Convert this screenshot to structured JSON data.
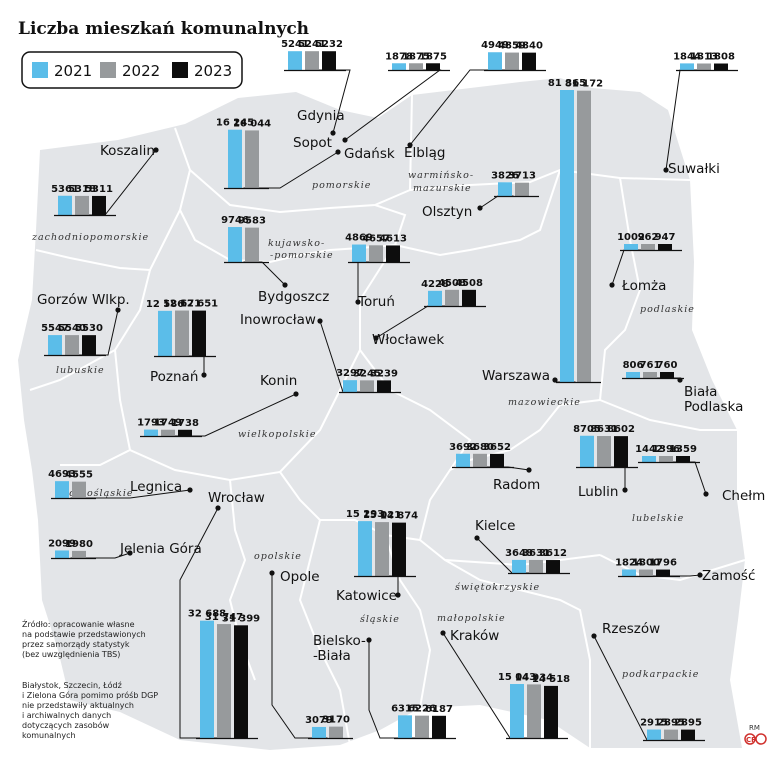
{
  "title": "Liczba mieszkań komunalnych",
  "legend": [
    {
      "label": "2021",
      "color": "#5bbde9"
    },
    {
      "label": "2022",
      "color": "#979a9c"
    },
    {
      "label": "2023",
      "color": "#0d0d0d"
    }
  ],
  "regions": [
    "pomorskie",
    "warmińsko-",
    "mazurskie",
    "zachodniopomorskie",
    "kujawsko-",
    "-pomorskie",
    "podlaskie",
    "lubuskie",
    "wielkopolskie",
    "mazowieckie",
    "dolnośląskie",
    "lubelskie",
    "opolskie",
    "świętokrzyskie",
    "śląskie",
    "małopolskie",
    "podkarpackie"
  ],
  "source_lines": [
    "Źródło: opracowanie własne",
    "na podstawie przedstawionych",
    "przez samorządy statystyk",
    "(bez uwzględnienia TBS)"
  ],
  "note_lines": [
    "Białystok, Szczecin, Łódź",
    "i Zielona Góra pomimo próśb DGP",
    "nie przedstawiły aktualnych",
    "i archiwalnych danych",
    "dotyczących zasobów",
    "komunalnych"
  ],
  "credit_top": "RM",
  "credit_logo": "CP",
  "chart_data": {
    "type": "bar",
    "title": "Liczba mieszkań komunalnych",
    "series_names": [
      "2021",
      "2022",
      "2023"
    ],
    "cities": [
      {
        "name": "Gdynia",
        "values": [
          5241,
          5241,
          5232
        ],
        "labels": [
          "5241",
          "5241",
          "5232"
        ]
      },
      {
        "name": "Sopot",
        "values": [
          1878,
          1875,
          1875
        ],
        "labels": [
          "1878",
          "1875",
          "1875"
        ]
      },
      {
        "name": "Gdańsk",
        "values": [
          16245,
          16044
        ],
        "labels": [
          "16 245",
          "16 044"
        ]
      },
      {
        "name": "Elbląg",
        "values": [
          4949,
          4859,
          4840
        ],
        "labels": [
          "4949",
          "4859",
          "4840"
        ]
      },
      {
        "name": "Suwałki",
        "values": [
          1844,
          1813,
          1808
        ],
        "labels": [
          "1844",
          "1813",
          "1808"
        ]
      },
      {
        "name": "Koszalin",
        "values": [
          5361,
          5318,
          5311
        ],
        "labels": [
          "5361",
          "5318",
          "5311"
        ]
      },
      {
        "name": "Olsztyn",
        "values": [
          3826,
          3713
        ],
        "labels": [
          "3826",
          "3713"
        ]
      },
      {
        "name": "Warszawa",
        "values": [
          81365,
          81172
        ],
        "labels": [
          "81 365",
          "81 172"
        ]
      },
      {
        "name": "Bydgoszcz",
        "values": [
          9746,
          9583
        ],
        "labels": [
          "9746",
          "9583"
        ]
      },
      {
        "name": "Toruń",
        "values": [
          4869,
          4657,
          4613
        ],
        "labels": [
          "4869",
          "4657",
          "4613"
        ]
      },
      {
        "name": "Łomża",
        "values": [
          1002,
          962,
          947
        ],
        "labels": [
          "1002",
          "962",
          "947"
        ]
      },
      {
        "name": "Włocławek",
        "values": [
          4228,
          4508,
          4508
        ],
        "labels": [
          "4228",
          "4508",
          "4508"
        ]
      },
      {
        "name": "Gorzów Wlkp.",
        "values": [
          5547,
          5540,
          5530
        ],
        "labels": [
          "5547",
          "5540",
          "5530"
        ]
      },
      {
        "name": "Poznań",
        "values": [
          12586,
          12671,
          12651
        ],
        "labels": [
          "12 586",
          "12 671",
          "12 651"
        ]
      },
      {
        "name": "Inowrocław",
        "values": [
          3297,
          3245,
          3239
        ],
        "labels": [
          "3297",
          "3245",
          "3239"
        ]
      },
      {
        "name": "Biała Podlaska",
        "values": [
          806,
          761,
          760
        ],
        "labels": [
          "806",
          "761",
          "760"
        ]
      },
      {
        "name": "Konin",
        "values": [
          1793,
          1749,
          1738
        ],
        "labels": [
          "1793",
          "1749",
          "1738"
        ]
      },
      {
        "name": "Radom",
        "values": [
          3692,
          3680,
          3652
        ],
        "labels": [
          "3692",
          "3680",
          "3652"
        ]
      },
      {
        "name": "Lublin",
        "values": [
          8705,
          8631,
          8602
        ],
        "labels": [
          "8705",
          "8631",
          "8602"
        ]
      },
      {
        "name": "Chełm",
        "values": [
          1442,
          1396,
          1359
        ],
        "labels": [
          "1442",
          "1396",
          "1359"
        ]
      },
      {
        "name": "Legnica",
        "values": [
          4693,
          4555
        ],
        "labels": [
          "4693",
          "4555"
        ]
      },
      {
        "name": "Wrocław",
        "values": [
          32688,
          31747,
          31399
        ],
        "labels": [
          "32 688",
          "31 747",
          "31 399"
        ]
      },
      {
        "name": "Katowice",
        "values": [
          15293,
          15021,
          14874
        ],
        "labels": [
          "15 293",
          "15 021",
          "14 874"
        ]
      },
      {
        "name": "Kielce",
        "values": [
          3648,
          3631,
          3612
        ],
        "labels": [
          "3648",
          "3631",
          "3612"
        ]
      },
      {
        "name": "Jelenia Góra",
        "values": [
          2099,
          1980
        ],
        "labels": [
          "2099",
          "1980"
        ]
      },
      {
        "name": "Zamość",
        "values": [
          1824,
          1800,
          1796
        ],
        "labels": [
          "1824",
          "1800",
          "1796"
        ]
      },
      {
        "name": "Opole",
        "values": [
          3079,
          3170
        ],
        "labels": [
          "3079",
          "3170"
        ]
      },
      {
        "name": "Rzeszów",
        "values": [
          2915,
          2895,
          2895
        ],
        "labels": [
          "2915",
          "2895",
          "2895"
        ]
      },
      {
        "name": "Kraków",
        "values": [
          15043,
          14934,
          14518
        ],
        "labels": [
          "15 043",
          "14 934",
          "14 518"
        ]
      },
      {
        "name": "Bielsko-Biała",
        "values": [
          6315,
          6226,
          6187
        ],
        "labels": [
          "6315",
          "6226",
          "6187"
        ]
      }
    ]
  }
}
